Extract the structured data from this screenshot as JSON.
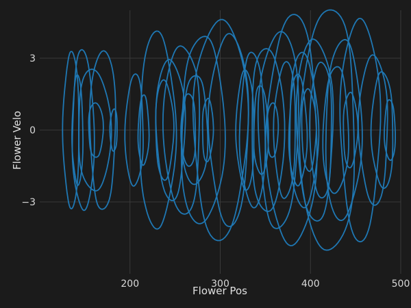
{
  "chart_data": {
    "type": "line",
    "title": "",
    "xlabel": "Flower Pos",
    "ylabel": "Flower Velo",
    "xlim": [
      100,
      500
    ],
    "ylim": [
      -6,
      5
    ],
    "x_ticks": [
      200,
      300,
      400,
      500
    ],
    "x_tick_labels": [
      "200",
      "300",
      "400",
      "500"
    ],
    "y_ticks": [
      3,
      0,
      -3
    ],
    "y_tick_labels": [
      "3",
      "0",
      "−3"
    ],
    "grid": true,
    "legend": "none",
    "series": [
      {
        "name": "",
        "color": "#1f78b4",
        "loops": [
          {
            "cx": 135,
            "ax": 9,
            "av": 3.1
          },
          {
            "cx": 142,
            "ax": 6,
            "av": 2.2
          },
          {
            "cx": 148,
            "ax": 12,
            "av": 3.3
          },
          {
            "cx": 160,
            "ax": 18,
            "av": 2.6
          },
          {
            "cx": 162,
            "ax": 8,
            "av": 1.2
          },
          {
            "cx": 170,
            "ax": 14,
            "av": 3.5
          },
          {
            "cx": 182,
            "ax": 4,
            "av": 0.9
          },
          {
            "cx": 205,
            "ax": 10,
            "av": 2.3
          },
          {
            "cx": 215,
            "ax": 6,
            "av": 1.4
          },
          {
            "cx": 230,
            "ax": 20,
            "av": 3.9
          },
          {
            "cx": 238,
            "ax": 10,
            "av": 2.0
          },
          {
            "cx": 245,
            "ax": 16,
            "av": 2.9
          },
          {
            "cx": 258,
            "ax": 20,
            "av": 3.6
          },
          {
            "cx": 265,
            "ax": 8,
            "av": 1.6
          },
          {
            "cx": 272,
            "ax": 14,
            "av": 2.4
          },
          {
            "cx": 280,
            "ax": 24,
            "av": 4.0
          },
          {
            "cx": 286,
            "ax": 6,
            "av": 1.3
          },
          {
            "cx": 300,
            "ax": 30,
            "av": 4.4
          },
          {
            "cx": 310,
            "ax": 22,
            "av": 3.8
          },
          {
            "cx": 328,
            "ax": 10,
            "av": 2.4
          },
          {
            "cx": 336,
            "ax": 14,
            "av": 3.2
          },
          {
            "cx": 345,
            "ax": 8,
            "av": 1.9
          },
          {
            "cx": 352,
            "ax": 18,
            "av": 3.6
          },
          {
            "cx": 358,
            "ax": 6,
            "av": 1.2
          },
          {
            "cx": 365,
            "ax": 22,
            "av": 4.2
          },
          {
            "cx": 372,
            "ax": 12,
            "av": 2.8
          },
          {
            "cx": 380,
            "ax": 28,
            "av": 4.6
          },
          {
            "cx": 386,
            "ax": 10,
            "av": 2.2
          },
          {
            "cx": 392,
            "ax": 16,
            "av": 3.1
          },
          {
            "cx": 398,
            "ax": 8,
            "av": 1.7
          },
          {
            "cx": 405,
            "ax": 20,
            "av": 3.9
          },
          {
            "cx": 412,
            "ax": 12,
            "av": 3.0
          },
          {
            "cx": 420,
            "ax": 30,
            "av": 5.3
          },
          {
            "cx": 428,
            "ax": 14,
            "av": 2.7
          },
          {
            "cx": 436,
            "ax": 20,
            "av": 3.7
          },
          {
            "cx": 444,
            "ax": 8,
            "av": 1.5
          },
          {
            "cx": 455,
            "ax": 22,
            "av": 4.4
          },
          {
            "cx": 470,
            "ax": 16,
            "av": 3.0
          },
          {
            "cx": 480,
            "ax": 12,
            "av": 2.4
          },
          {
            "cx": 488,
            "ax": 6,
            "av": 1.3
          }
        ]
      }
    ]
  }
}
